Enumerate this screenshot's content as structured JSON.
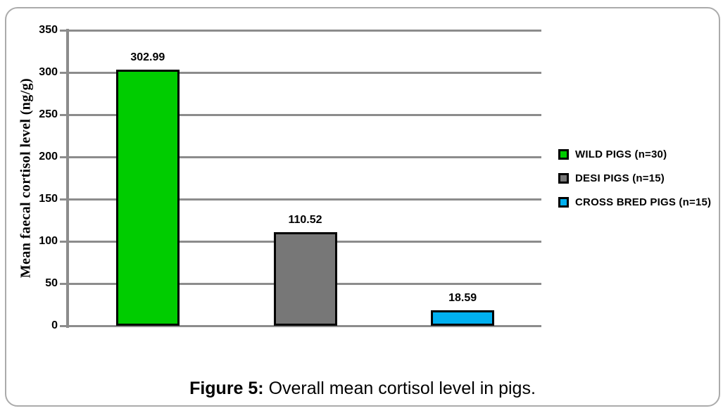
{
  "figure": {
    "caption_prefix": "Figure 5:",
    "caption_text": " Overall mean cortisol level in pigs."
  },
  "chart_data": {
    "type": "bar",
    "title": "",
    "xlabel": "",
    "ylabel": "Mean faecal cortisol level (ng/g)",
    "ylim": [
      0,
      350
    ],
    "yticks": [
      350,
      300,
      250,
      200,
      150,
      100,
      50,
      0
    ],
    "grid": true,
    "legend_position": "right",
    "categories": [
      "WILD PIGS (n=30)",
      "DESI PIGS (n=15)",
      "CROSS BRED PIGS (n=15)"
    ],
    "series": [
      {
        "name": "Mean faecal cortisol level (ng/g)",
        "values": [
          302.99,
          110.52,
          18.59
        ]
      }
    ],
    "value_labels": [
      "302.99",
      "110.52",
      "18.59"
    ],
    "bar_colors": [
      "#00cc00",
      "#777777",
      "#00b0f0"
    ],
    "bar_border_color": "#000000",
    "grid_color": "#8c8c8c",
    "axis_color": "#8c8c8c",
    "text_color": "#000000"
  }
}
